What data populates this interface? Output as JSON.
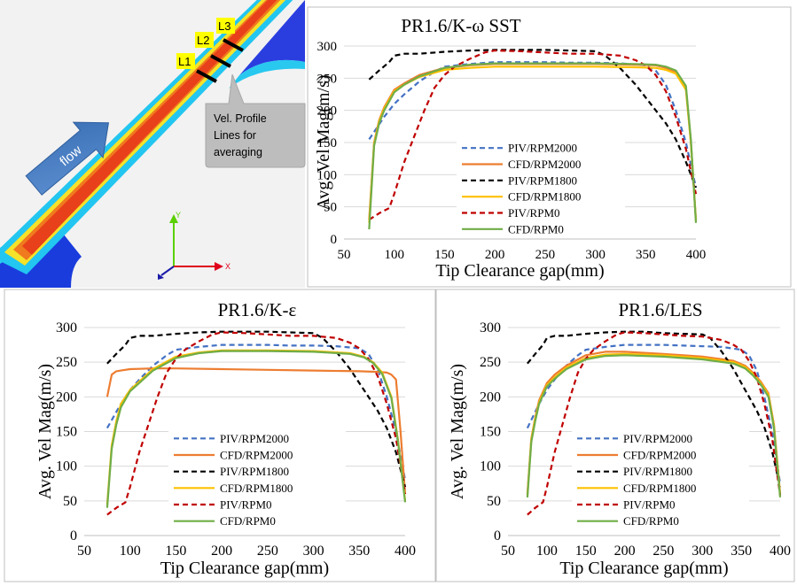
{
  "cfd_image": {
    "line_labels": [
      "L1",
      "L2",
      "L3"
    ],
    "arrow_label": "flow",
    "callout_lines": [
      "Vel. Profile",
      "Lines for",
      "averaging"
    ],
    "axis_y": "Y",
    "axis_x": "X",
    "colors": {
      "background": "#f0f0f0",
      "jet_core": "#e8501e",
      "callout": "#bdbdbd",
      "arrow": "#4f86c6",
      "label_box": "#ffff00"
    }
  },
  "chart_data": [
    {
      "type": "line",
      "title": "PR1.6/K-ω SST",
      "xlabel": "Tip Clearance gap(mm)",
      "ylabel": "Avg. Vel Mag(m/s)",
      "xlim": [
        50,
        400
      ],
      "ylim": [
        0,
        300
      ],
      "xticks": [
        50,
        100,
        150,
        200,
        250,
        300,
        350,
        400
      ],
      "yticks": [
        0,
        50,
        100,
        150,
        200,
        250,
        300
      ],
      "grid": "horizontal",
      "legend": "lower-center",
      "series": [
        {
          "name": "PIV/RPM2000",
          "color": "#4472c4",
          "dash": true,
          "x": [
            75,
            90,
            100,
            110,
            125,
            140,
            150,
            175,
            200,
            225,
            250,
            275,
            300,
            325,
            350,
            360,
            370,
            380,
            390,
            400
          ],
          "y": [
            155,
            190,
            210,
            225,
            245,
            260,
            268,
            272,
            275,
            275,
            275,
            274,
            274,
            273,
            270,
            262,
            240,
            200,
            150,
            80
          ]
        },
        {
          "name": "CFD/RPM2000",
          "color": "#ed7d31",
          "dash": false,
          "x": [
            75,
            80,
            85,
            90,
            100,
            110,
            125,
            150,
            175,
            200,
            250,
            300,
            340,
            360,
            370,
            380,
            390,
            395,
            400
          ],
          "y": [
            30,
            150,
            185,
            205,
            232,
            242,
            255,
            266,
            270,
            272,
            272,
            272,
            271,
            270,
            266,
            260,
            235,
            150,
            30
          ]
        },
        {
          "name": "PIV/RPM1800",
          "color": "#000000",
          "dash": true,
          "x": [
            75,
            85,
            95,
            100,
            110,
            125,
            150,
            175,
            200,
            225,
            250,
            275,
            300,
            310,
            325,
            340,
            355,
            370,
            380,
            390,
            400
          ],
          "y": [
            248,
            262,
            275,
            285,
            288,
            288,
            291,
            293,
            294,
            294,
            294,
            293,
            292,
            285,
            265,
            240,
            210,
            180,
            155,
            120,
            80
          ]
        },
        {
          "name": "CFD/RPM1800",
          "color": "#ffc000",
          "dash": false,
          "x": [
            75,
            80,
            85,
            90,
            100,
            110,
            125,
            150,
            175,
            200,
            250,
            300,
            340,
            360,
            370,
            380,
            390,
            395,
            400
          ],
          "y": [
            25,
            148,
            183,
            203,
            230,
            240,
            252,
            263,
            266,
            268,
            268,
            268,
            267,
            266,
            263,
            257,
            232,
            150,
            28
          ]
        },
        {
          "name": "PIV/RPM0",
          "color": "#c00000",
          "dash": true,
          "x": [
            75,
            85,
            95,
            100,
            110,
            120,
            130,
            140,
            150,
            160,
            175,
            190,
            200,
            225,
            250,
            275,
            300,
            325,
            340,
            350,
            360,
            370,
            380,
            390,
            400
          ],
          "y": [
            30,
            40,
            48,
            70,
            120,
            160,
            200,
            235,
            255,
            268,
            280,
            290,
            293,
            292,
            290,
            288,
            288,
            285,
            278,
            270,
            255,
            230,
            190,
            140,
            70
          ]
        },
        {
          "name": "CFD/RPM0",
          "color": "#70ad47",
          "dash": false,
          "x": [
            75,
            80,
            85,
            90,
            100,
            110,
            125,
            150,
            175,
            200,
            250,
            300,
            340,
            360,
            370,
            380,
            390,
            395,
            400
          ],
          "y": [
            15,
            145,
            180,
            200,
            228,
            240,
            253,
            266,
            271,
            273,
            273,
            273,
            272,
            271,
            268,
            262,
            238,
            155,
            25
          ]
        }
      ]
    },
    {
      "type": "line",
      "title": "PR1.6/K-ε",
      "xlabel": "Tip Clearance gap(mm)",
      "ylabel": "Avg. Vel Mag(m/s)",
      "xlim": [
        50,
        400
      ],
      "ylim": [
        0,
        300
      ],
      "xticks": [
        50,
        100,
        150,
        200,
        250,
        300,
        350,
        400
      ],
      "yticks": [
        0,
        50,
        100,
        150,
        200,
        250,
        300
      ],
      "grid": "horizontal",
      "legend": "lower-center",
      "series": [
        {
          "name": "PIV/RPM2000",
          "color": "#4472c4",
          "dash": true,
          "x": [
            75,
            90,
            100,
            110,
            125,
            140,
            150,
            175,
            200,
            225,
            250,
            275,
            300,
            325,
            350,
            360,
            370,
            380,
            390,
            400
          ],
          "y": [
            155,
            190,
            210,
            225,
            245,
            260,
            268,
            272,
            275,
            275,
            275,
            274,
            274,
            273,
            270,
            262,
            240,
            200,
            150,
            80
          ]
        },
        {
          "name": "CFD/RPM2000",
          "color": "#ed7d31",
          "dash": false,
          "x": [
            75,
            80,
            85,
            90,
            100,
            125,
            150,
            200,
            250,
            300,
            350,
            370,
            380,
            385,
            390,
            395,
            400
          ],
          "y": [
            200,
            232,
            237,
            238,
            240,
            241,
            241,
            240,
            239,
            238,
            237,
            236,
            235,
            232,
            225,
            150,
            60
          ]
        },
        {
          "name": "PIV/RPM1800",
          "color": "#000000",
          "dash": true,
          "x": [
            75,
            85,
            95,
            100,
            110,
            125,
            150,
            175,
            200,
            225,
            250,
            275,
            300,
            310,
            325,
            340,
            355,
            370,
            380,
            390,
            400
          ],
          "y": [
            248,
            262,
            275,
            285,
            288,
            288,
            291,
            293,
            294,
            294,
            294,
            293,
            292,
            285,
            265,
            240,
            210,
            180,
            155,
            120,
            70
          ]
        },
        {
          "name": "CFD/RPM1800",
          "color": "#ffc000",
          "dash": false,
          "x": [
            75,
            80,
            85,
            90,
            100,
            110,
            125,
            150,
            175,
            200,
            250,
            300,
            340,
            355,
            365,
            375,
            385,
            392,
            400
          ],
          "y": [
            45,
            130,
            165,
            190,
            210,
            222,
            240,
            258,
            264,
            267,
            267,
            266,
            263,
            258,
            250,
            235,
            200,
            140,
            50
          ]
        },
        {
          "name": "PIV/RPM0",
          "color": "#c00000",
          "dash": true,
          "x": [
            75,
            85,
            95,
            100,
            110,
            120,
            130,
            140,
            150,
            160,
            175,
            190,
            200,
            225,
            250,
            275,
            300,
            325,
            340,
            350,
            360,
            370,
            380,
            390,
            400
          ],
          "y": [
            30,
            40,
            48,
            70,
            120,
            160,
            200,
            235,
            255,
            268,
            280,
            290,
            293,
            292,
            290,
            288,
            288,
            285,
            278,
            270,
            255,
            230,
            190,
            140,
            60
          ]
        },
        {
          "name": "CFD/RPM0",
          "color": "#70ad47",
          "dash": false,
          "x": [
            75,
            80,
            85,
            90,
            100,
            110,
            125,
            150,
            175,
            200,
            250,
            300,
            340,
            355,
            365,
            375,
            385,
            392,
            400
          ],
          "y": [
            40,
            125,
            160,
            185,
            208,
            220,
            238,
            256,
            263,
            266,
            266,
            265,
            262,
            257,
            249,
            233,
            198,
            138,
            48
          ]
        }
      ]
    },
    {
      "type": "line",
      "title": "PR1.6/LES",
      "xlabel": "Tip Clearance gap(mm)",
      "ylabel": "Avg. Vel Mag(m/s)",
      "xlim": [
        50,
        400
      ],
      "ylim": [
        0,
        300
      ],
      "xticks": [
        50,
        100,
        150,
        200,
        250,
        300,
        350,
        400
      ],
      "yticks": [
        0,
        50,
        100,
        150,
        200,
        250,
        300
      ],
      "grid": "horizontal",
      "legend": "lower-center",
      "series": [
        {
          "name": "PIV/RPM2000",
          "color": "#4472c4",
          "dash": true,
          "x": [
            75,
            90,
            100,
            110,
            125,
            140,
            150,
            175,
            200,
            225,
            250,
            275,
            300,
            325,
            350,
            360,
            370,
            380,
            390,
            400
          ],
          "y": [
            155,
            190,
            210,
            225,
            245,
            260,
            268,
            272,
            275,
            275,
            275,
            274,
            273,
            272,
            268,
            260,
            238,
            198,
            148,
            75
          ]
        },
        {
          "name": "CFD/RPM2000",
          "color": "#ed7d31",
          "dash": false,
          "x": [
            75,
            80,
            85,
            90,
            100,
            110,
            125,
            150,
            175,
            200,
            250,
            300,
            340,
            355,
            365,
            375,
            385,
            392,
            400
          ],
          "y": [
            60,
            140,
            170,
            195,
            220,
            232,
            245,
            260,
            265,
            265,
            262,
            258,
            252,
            245,
            235,
            222,
            205,
            160,
            60
          ]
        },
        {
          "name": "PIV/RPM1800",
          "color": "#000000",
          "dash": true,
          "x": [
            75,
            85,
            95,
            100,
            110,
            125,
            150,
            175,
            200,
            225,
            250,
            275,
            300,
            310,
            325,
            340,
            355,
            370,
            380,
            390,
            400
          ],
          "y": [
            248,
            262,
            275,
            285,
            288,
            288,
            291,
            293,
            294,
            294,
            292,
            291,
            290,
            285,
            265,
            240,
            210,
            180,
            155,
            120,
            70
          ]
        },
        {
          "name": "CFD/RPM1800",
          "color": "#ffc000",
          "dash": false,
          "x": [
            75,
            80,
            85,
            90,
            100,
            110,
            125,
            150,
            175,
            200,
            250,
            300,
            340,
            355,
            365,
            375,
            385,
            392,
            400
          ],
          "y": [
            58,
            138,
            168,
            192,
            217,
            228,
            242,
            256,
            261,
            262,
            260,
            256,
            250,
            243,
            233,
            220,
            203,
            158,
            58
          ]
        },
        {
          "name": "PIV/RPM0",
          "color": "#c00000",
          "dash": true,
          "x": [
            75,
            85,
            95,
            100,
            110,
            120,
            130,
            140,
            150,
            160,
            175,
            190,
            200,
            225,
            250,
            275,
            300,
            325,
            340,
            350,
            360,
            370,
            380,
            390,
            400
          ],
          "y": [
            30,
            40,
            48,
            70,
            120,
            160,
            200,
            235,
            255,
            268,
            280,
            290,
            293,
            292,
            290,
            288,
            287,
            282,
            275,
            268,
            252,
            228,
            188,
            138,
            58
          ]
        },
        {
          "name": "CFD/RPM0",
          "color": "#70ad47",
          "dash": false,
          "x": [
            75,
            80,
            85,
            90,
            100,
            110,
            125,
            150,
            175,
            200,
            250,
            300,
            340,
            355,
            365,
            375,
            385,
            392,
            400
          ],
          "y": [
            55,
            135,
            165,
            190,
            215,
            226,
            240,
            254,
            259,
            260,
            258,
            254,
            248,
            241,
            231,
            218,
            200,
            155,
            55
          ]
        }
      ]
    }
  ]
}
